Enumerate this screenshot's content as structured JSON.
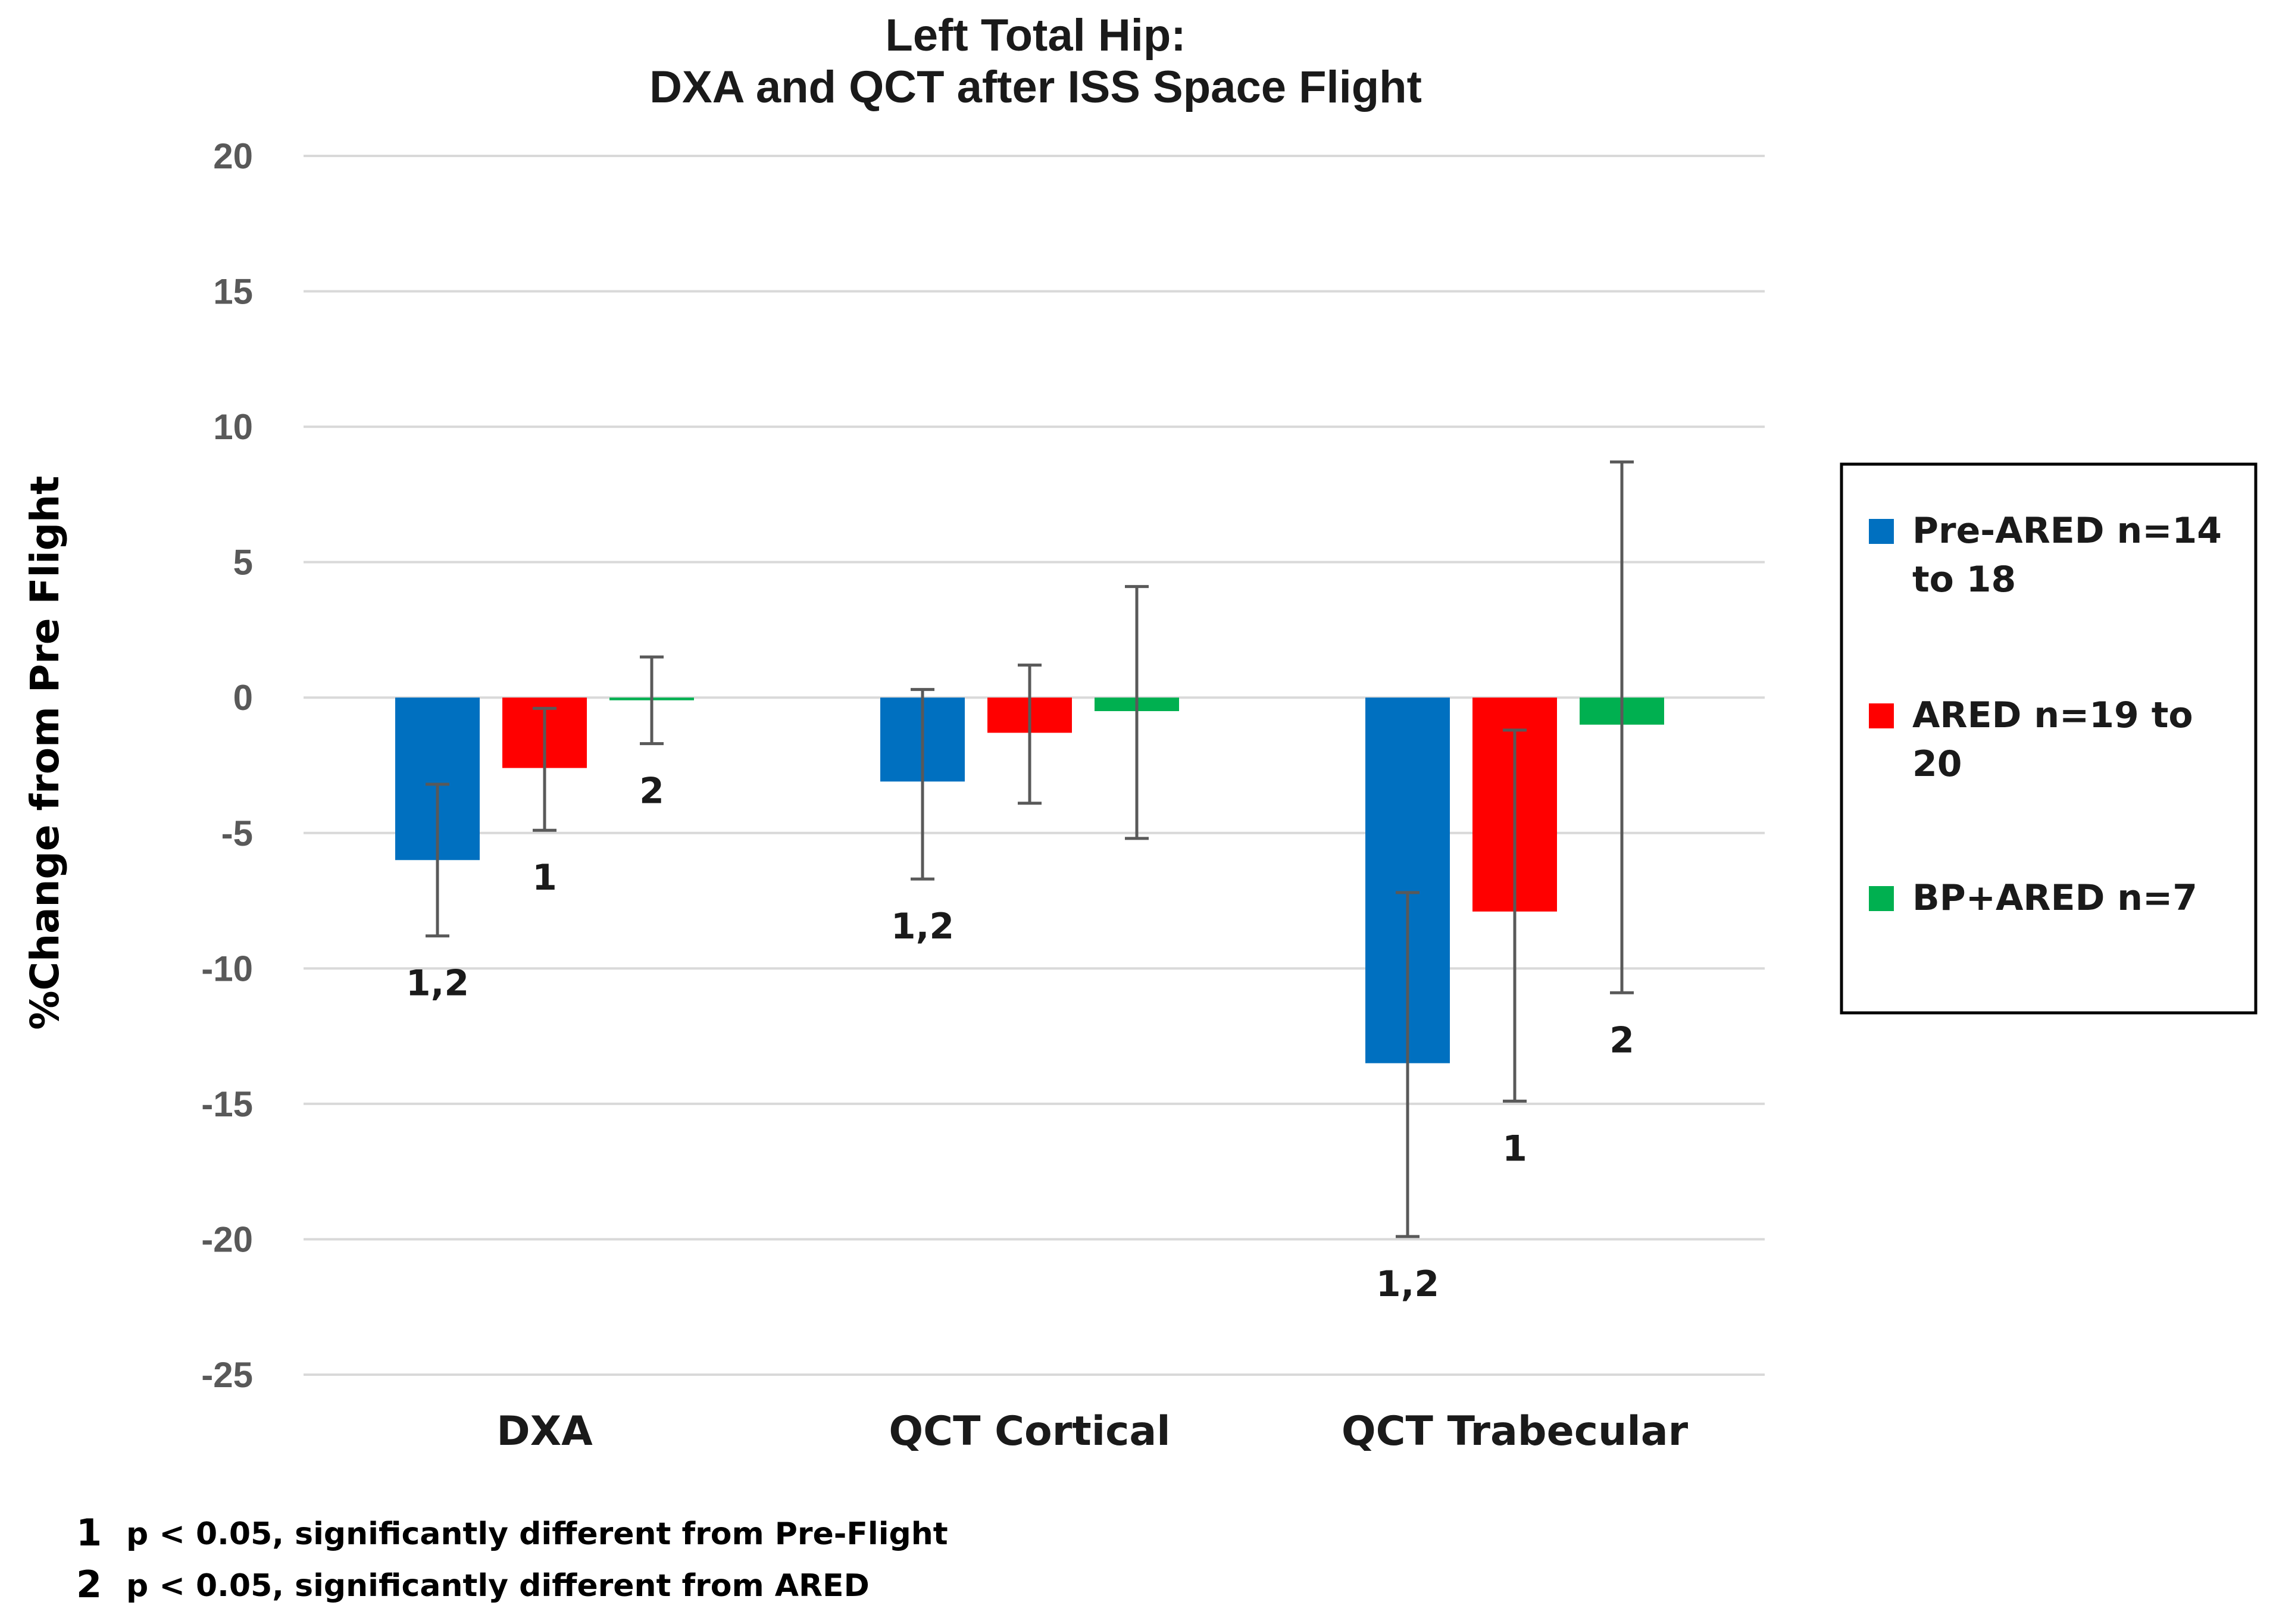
{
  "chart_data": {
    "type": "bar",
    "title": "Left Total Hip:",
    "subtitle": "DXA and QCT after ISS Space Flight",
    "xlabel": "",
    "ylabel": "%Change from Pre Flight",
    "ylim": [
      -25,
      20
    ],
    "yticks": [
      20,
      15,
      10,
      5,
      0,
      -5,
      -10,
      -15,
      -20,
      -25
    ],
    "ytick_labels": [
      "20",
      "15",
      "10",
      "5",
      "0",
      "-5",
      "-10",
      "-15",
      "-20",
      "-25"
    ],
    "grid": true,
    "legend_position": "right",
    "categories": [
      "DXA",
      "QCT Cortical",
      "QCT Trabecular"
    ],
    "series": [
      {
        "name": "Pre-ARED n=14 to 18",
        "legend_lines": [
          "Pre-ARED n=14",
          "to 18"
        ],
        "color": "#0070C0",
        "values": [
          -6.0,
          -3.1,
          -13.5
        ],
        "error_low": [
          -8.8,
          -6.7,
          -19.9
        ],
        "error_high": [
          -3.2,
          0.3,
          -7.2
        ],
        "annotations": [
          "1,2",
          "1,2",
          "1,2"
        ]
      },
      {
        "name": "ARED n=19 to 20",
        "legend_lines": [
          "ARED n=19 to",
          "20"
        ],
        "color": "#FF0000",
        "values": [
          -2.6,
          -1.3,
          -7.9
        ],
        "error_low": [
          -4.9,
          -3.9,
          -14.9
        ],
        "error_high": [
          -0.4,
          1.2,
          -1.2
        ],
        "annotations": [
          "1",
          "",
          "1"
        ]
      },
      {
        "name": "BP+ARED n=7",
        "legend_lines": [
          "BP+ARED n=7"
        ],
        "color": "#00B050",
        "values": [
          -0.1,
          -0.5,
          -1.0
        ],
        "error_low": [
          -1.7,
          -5.2,
          -10.9
        ],
        "error_high": [
          1.5,
          4.1,
          8.7
        ],
        "annotations": [
          "2",
          "",
          "2"
        ]
      }
    ]
  },
  "footnotes": [
    {
      "num": "1",
      "text": "p < 0.05, significantly different from Pre-Flight"
    },
    {
      "num": "2",
      "text": "p < 0.05, significantly different from ARED"
    }
  ],
  "colors": {
    "grid": "#D9D9D9",
    "error_bar": "#595959",
    "legend_border": "#000000"
  }
}
